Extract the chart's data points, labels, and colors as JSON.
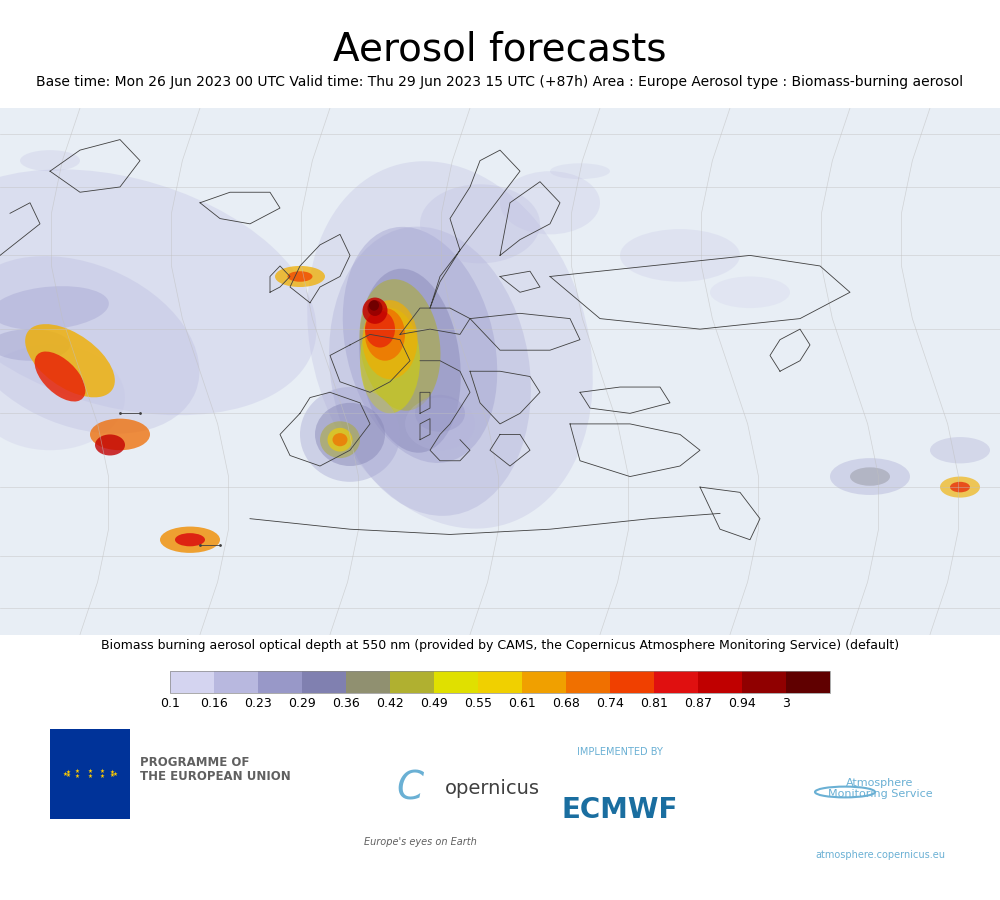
{
  "title": "Aerosol forecasts",
  "subtitle": "Base time: Mon 26 Jun 2023 00 UTC Valid time: Thu 29 Jun 2023 15 UTC (+87h) Area : Europe Aerosol type : Biomass-burning aerosol",
  "colorbar_label": "Biomass burning aerosol optical depth at 550 nm (provided by CAMS, the Copernicus Atmosphere Monitoring Service) (default)",
  "colorbar_ticks": [
    0.1,
    0.16,
    0.23,
    0.29,
    0.36,
    0.42,
    0.49,
    0.55,
    0.61,
    0.68,
    0.74,
    0.81,
    0.87,
    0.94,
    3
  ],
  "colorbar_colors": [
    "#d4d4f0",
    "#b8b8df",
    "#9898c8",
    "#8080b0",
    "#909070",
    "#b0b030",
    "#e0e000",
    "#f0d000",
    "#f0a000",
    "#f07000",
    "#f04000",
    "#e01010",
    "#c00000",
    "#900000",
    "#600000"
  ],
  "background_color": "#ffffff",
  "map_bg": "#ffffff",
  "title_fontsize": 28,
  "subtitle_fontsize": 10,
  "colorbar_label_fontsize": 9,
  "colorbar_tick_fontsize": 9,
  "eu_flag_color": "#003399",
  "eu_stars_color": "#ffcc00",
  "programme_text": "PROGRAMME OF\nTHE EUROPEAN UNION",
  "programme_text_color": "#606060",
  "copernicus_text": "opernicus",
  "copernicus_tagline": "Europe's eyes on Earth",
  "ecmwf_text": "IMPLEMENTED BY",
  "ecmwf_logo_text": "ECMWF",
  "ams_text": "Atmosphere\nMonitoring Service",
  "ams_url": "atmosphere.copernicus.eu"
}
